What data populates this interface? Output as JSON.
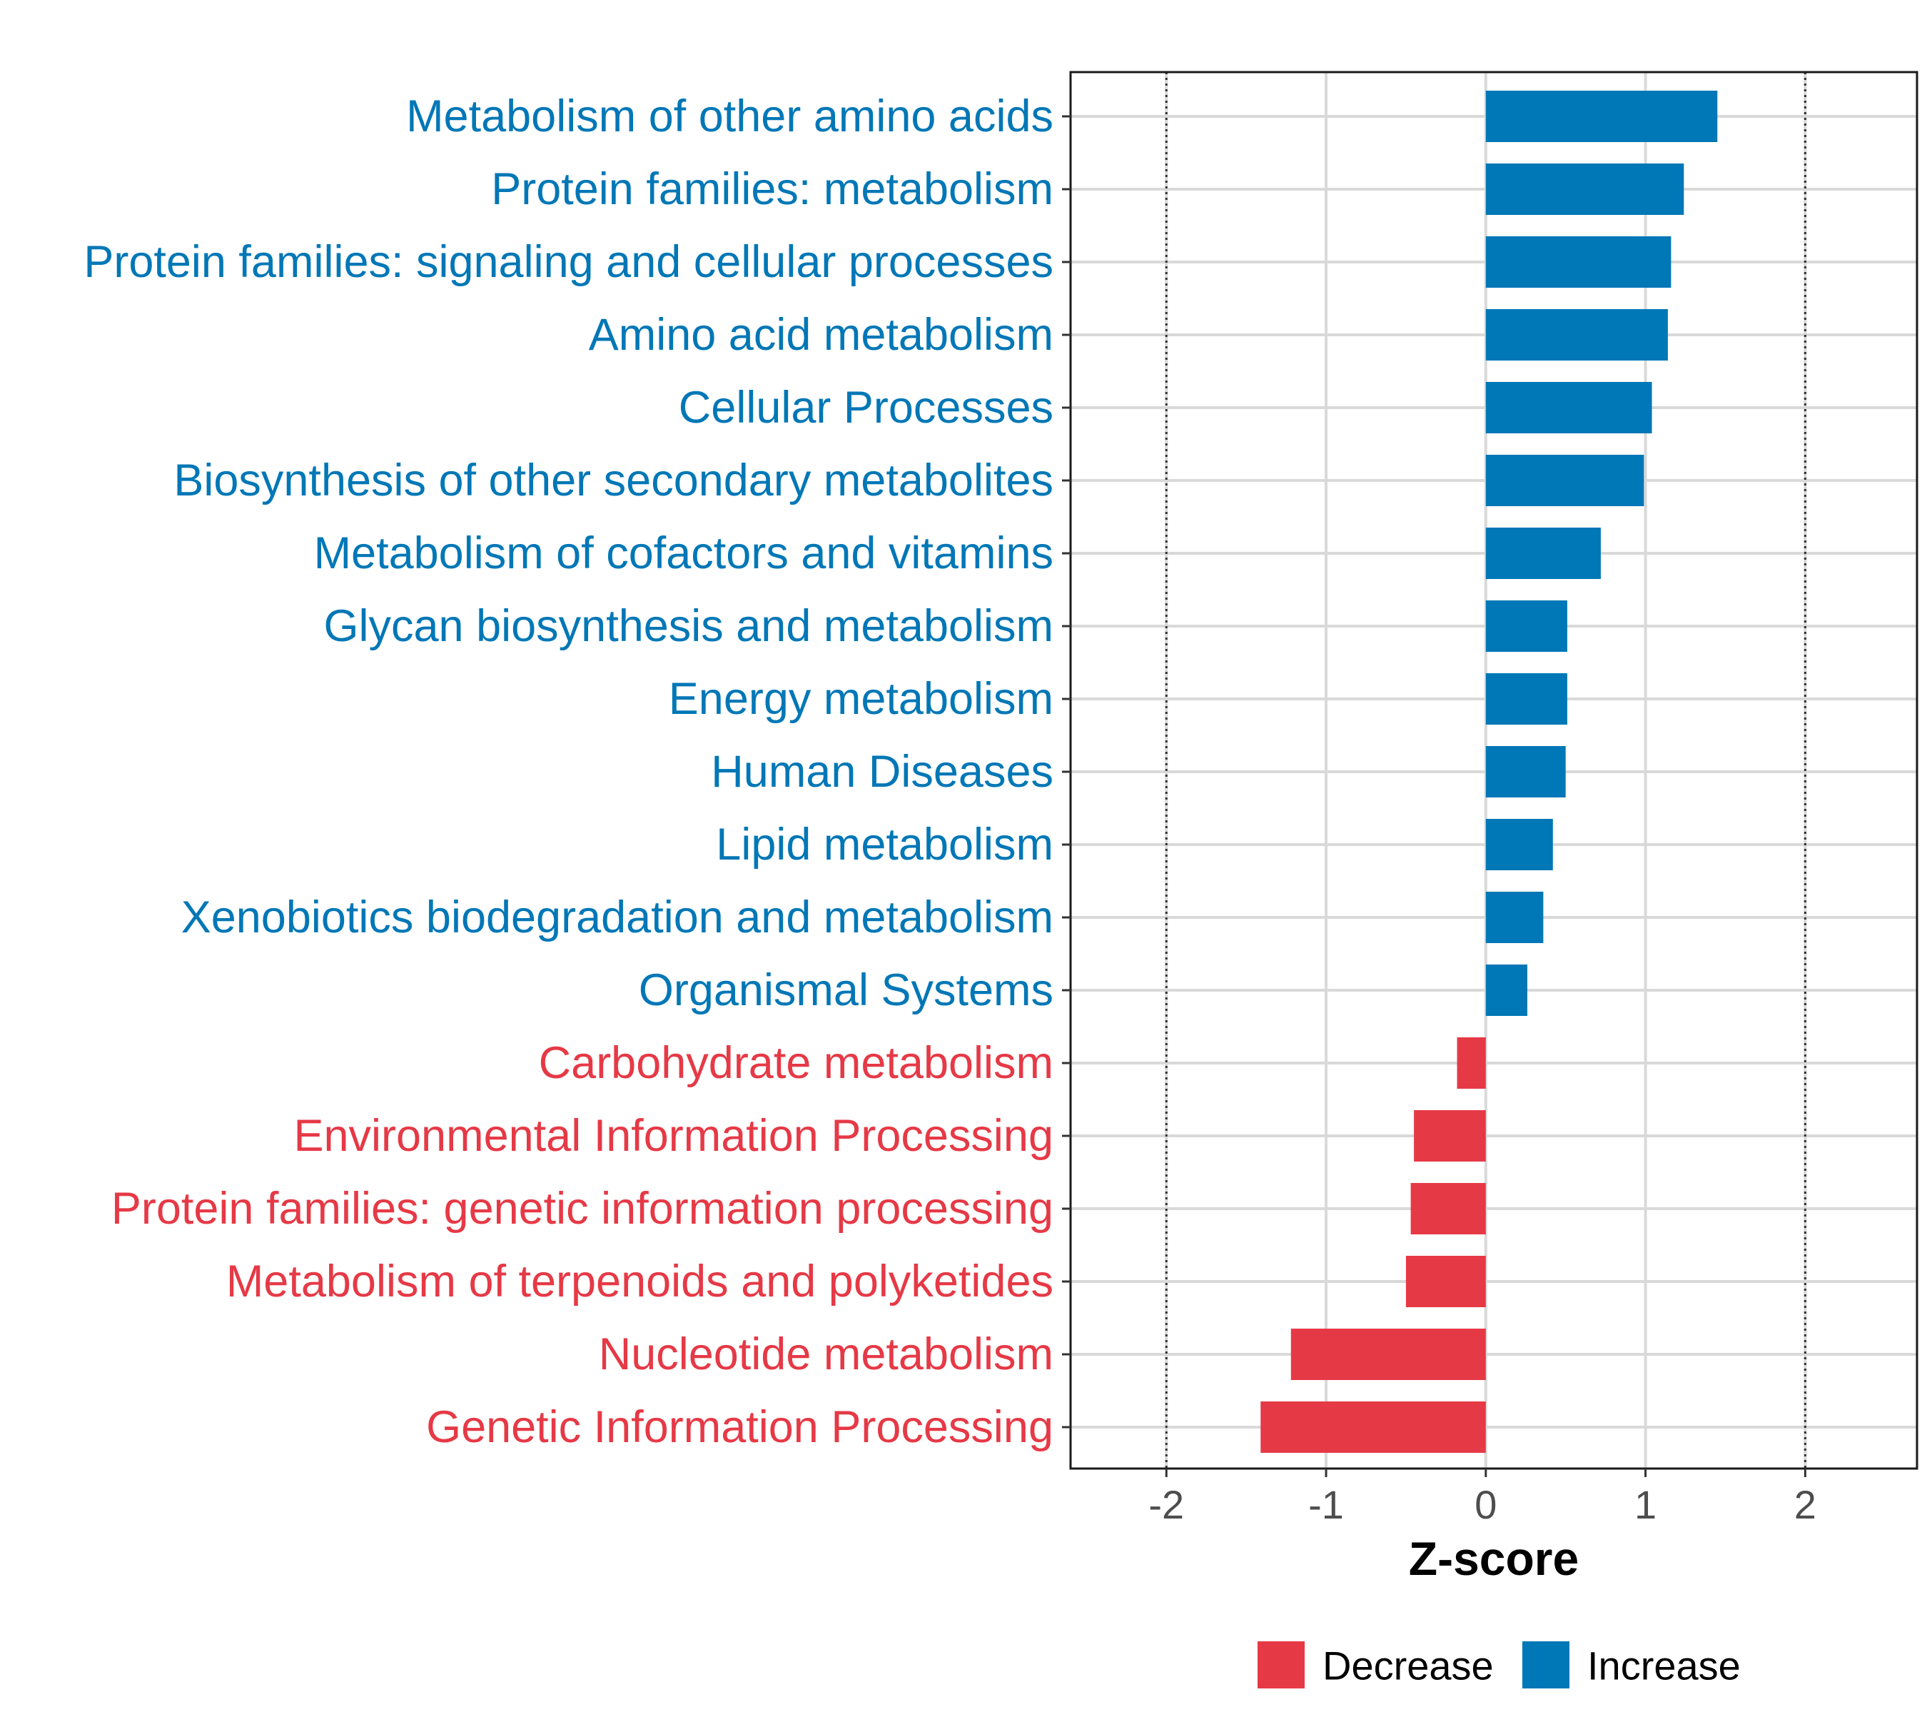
{
  "chart_data": {
    "type": "bar",
    "orientation": "horizontal",
    "title": "",
    "xlabel": "Z-score",
    "ylabel": "",
    "xlim": [
      -2.6,
      2.7
    ],
    "xticks": [
      -2,
      -1,
      0,
      1,
      2
    ],
    "xtick_labels": [
      "-2",
      "-1",
      "0",
      "1",
      "2"
    ],
    "reference_lines": [
      -2,
      2
    ],
    "grid": true,
    "legend_position": "bottom",
    "colors": {
      "Decrease": "#E63946",
      "Increase": "#0077B6"
    },
    "legend": [
      {
        "label": "Decrease",
        "color": "#E63946"
      },
      {
        "label": "Increase",
        "color": "#0077B6"
      }
    ],
    "categories": [
      "Metabolism of other amino acids",
      "Protein families: metabolism",
      "Protein families: signaling and cellular processes",
      "Amino acid metabolism",
      "Cellular Processes",
      "Biosynthesis of other secondary metabolites",
      "Metabolism of cofactors and vitamins",
      "Glycan biosynthesis and metabolism",
      "Energy metabolism",
      "Human Diseases",
      "Lipid metabolism",
      "Xenobiotics biodegradation and metabolism",
      "Organismal Systems",
      "Carbohydrate metabolism",
      "Environmental Information Processing",
      "Protein families: genetic information processing",
      "Metabolism of terpenoids and polyketides",
      "Nucleotide metabolism",
      "Genetic Information Processing"
    ],
    "values": [
      1.45,
      1.24,
      1.16,
      1.14,
      1.04,
      0.99,
      0.72,
      0.51,
      0.51,
      0.5,
      0.42,
      0.36,
      0.26,
      -0.18,
      -0.45,
      -0.47,
      -0.5,
      -1.22,
      -1.41
    ],
    "groups": [
      "Increase",
      "Increase",
      "Increase",
      "Increase",
      "Increase",
      "Increase",
      "Increase",
      "Increase",
      "Increase",
      "Increase",
      "Increase",
      "Increase",
      "Increase",
      "Decrease",
      "Decrease",
      "Decrease",
      "Decrease",
      "Decrease",
      "Decrease"
    ]
  }
}
